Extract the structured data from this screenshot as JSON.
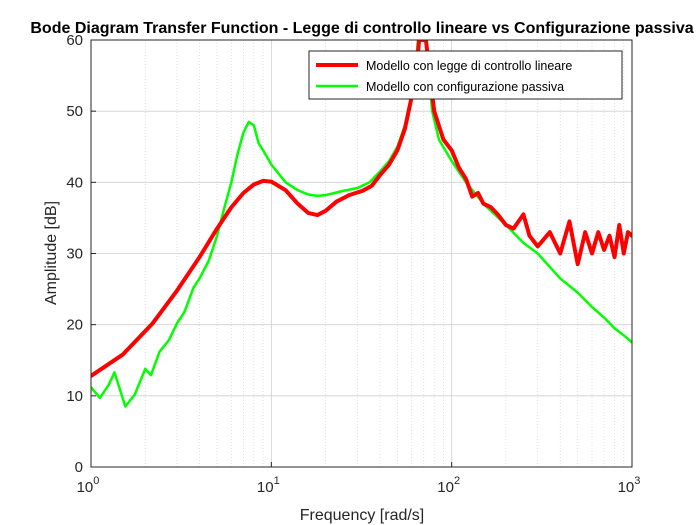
{
  "figure": {
    "title": "Bode Diagram Transfer Function - Legge di controllo lineare vs Configurazione passiva",
    "background": "#ffffff"
  },
  "chart_data": {
    "type": "line",
    "title": "Bode Diagram Transfer Function - Legge di controllo lineare vs Configurazione passiva",
    "xlabel": "Frequency [rad/s]",
    "ylabel": "Amplitude [dB]",
    "xscale": "log",
    "xlim": [
      1,
      1000
    ],
    "ylim": [
      0,
      60
    ],
    "grid": "on (major and minor)",
    "legend_position": "top-right",
    "x_tick_labels": [
      {
        "base": "10",
        "exp": "0"
      },
      {
        "base": "10",
        "exp": "1"
      },
      {
        "base": "10",
        "exp": "2"
      },
      {
        "base": "10",
        "exp": "3"
      }
    ],
    "y_ticks": [
      "0",
      "10",
      "20",
      "30",
      "40",
      "50",
      "60"
    ],
    "series": [
      {
        "name": "Modello con legge di controllo lineare",
        "color": "#ff0000",
        "points": [
          [
            1.0,
            12.8
          ],
          [
            1.5,
            15.8
          ],
          [
            2.2,
            20.2
          ],
          [
            3.0,
            24.8
          ],
          [
            4.0,
            29.5
          ],
          [
            5.0,
            33.5
          ],
          [
            6.0,
            36.5
          ],
          [
            7.0,
            38.5
          ],
          [
            8.0,
            39.7
          ],
          [
            9.0,
            40.2
          ],
          [
            10.0,
            40.1
          ],
          [
            12.0,
            38.9
          ],
          [
            14.0,
            37.0
          ],
          [
            16.0,
            35.7
          ],
          [
            18.0,
            35.4
          ],
          [
            20.0,
            36.0
          ],
          [
            23.0,
            37.3
          ],
          [
            27.0,
            38.2
          ],
          [
            32.0,
            38.8
          ],
          [
            36.0,
            39.5
          ],
          [
            40.0,
            41.0
          ],
          [
            45.0,
            42.5
          ],
          [
            50.0,
            44.5
          ],
          [
            55.0,
            47.5
          ],
          [
            60.0,
            52.0
          ],
          [
            64.0,
            56.0
          ],
          [
            66.0,
            60.0
          ],
          [
            72.0,
            60.0
          ],
          [
            75.0,
            56.0
          ],
          [
            80.0,
            50.0
          ],
          [
            90.0,
            46.0
          ],
          [
            100.0,
            44.5
          ],
          [
            110.0,
            42.0
          ],
          [
            120.0,
            40.5
          ],
          [
            130.0,
            38.0
          ],
          [
            140.0,
            38.5
          ],
          [
            150.0,
            37.0
          ],
          [
            165.0,
            36.5
          ],
          [
            180.0,
            35.5
          ],
          [
            200.0,
            34.0
          ],
          [
            220.0,
            33.5
          ],
          [
            250.0,
            35.5
          ],
          [
            270.0,
            32.5
          ],
          [
            300.0,
            31.0
          ],
          [
            350.0,
            33.0
          ],
          [
            400.0,
            30.0
          ],
          [
            450.0,
            34.5
          ],
          [
            500.0,
            28.5
          ],
          [
            550.0,
            33.0
          ],
          [
            600.0,
            30.0
          ],
          [
            650.0,
            33.0
          ],
          [
            700.0,
            30.5
          ],
          [
            750.0,
            32.5
          ],
          [
            800.0,
            29.5
          ],
          [
            850.0,
            34.0
          ],
          [
            900.0,
            30.0
          ],
          [
            950.0,
            33.0
          ],
          [
            1000.0,
            32.5
          ]
        ]
      },
      {
        "name": "Modello con configurazione passiva",
        "color": "#00ff00",
        "points": [
          [
            1.0,
            11.2
          ],
          [
            1.12,
            9.7
          ],
          [
            1.25,
            11.5
          ],
          [
            1.35,
            13.3
          ],
          [
            1.55,
            8.5
          ],
          [
            1.75,
            10.2
          ],
          [
            2.0,
            13.8
          ],
          [
            2.15,
            12.9
          ],
          [
            2.4,
            16.2
          ],
          [
            2.7,
            17.8
          ],
          [
            3.0,
            20.2
          ],
          [
            3.3,
            21.8
          ],
          [
            3.7,
            25.2
          ],
          [
            4.0,
            26.5
          ],
          [
            4.5,
            29.0
          ],
          [
            5.0,
            32.5
          ],
          [
            5.5,
            36.5
          ],
          [
            6.0,
            40.0
          ],
          [
            6.5,
            44.0
          ],
          [
            7.0,
            47.0
          ],
          [
            7.5,
            48.5
          ],
          [
            8.0,
            48.0
          ],
          [
            8.5,
            45.5
          ],
          [
            9.0,
            44.5
          ],
          [
            10.0,
            42.5
          ],
          [
            12.0,
            40.0
          ],
          [
            14.0,
            38.9
          ],
          [
            16.0,
            38.3
          ],
          [
            18.0,
            38.1
          ],
          [
            20.0,
            38.2
          ],
          [
            25.0,
            38.8
          ],
          [
            30.0,
            39.2
          ],
          [
            35.0,
            40.0
          ],
          [
            40.0,
            41.5
          ],
          [
            45.0,
            43.0
          ],
          [
            50.0,
            45.0
          ],
          [
            55.0,
            48.0
          ],
          [
            60.0,
            52.0
          ],
          [
            63.0,
            56.0
          ],
          [
            65.0,
            60.0
          ],
          [
            72.0,
            60.0
          ],
          [
            74.0,
            56.0
          ],
          [
            78.0,
            50.0
          ],
          [
            85.0,
            46.0
          ],
          [
            100.0,
            43.0
          ],
          [
            120.0,
            40.0
          ],
          [
            150.0,
            37.0
          ],
          [
            200.0,
            34.0
          ],
          [
            250.0,
            31.5
          ],
          [
            300.0,
            30.0
          ],
          [
            400.0,
            26.5
          ],
          [
            500.0,
            24.5
          ],
          [
            600.0,
            22.5
          ],
          [
            700.0,
            21.0
          ],
          [
            800.0,
            19.5
          ],
          [
            900.0,
            18.5
          ],
          [
            1000.0,
            17.5
          ]
        ]
      }
    ]
  }
}
